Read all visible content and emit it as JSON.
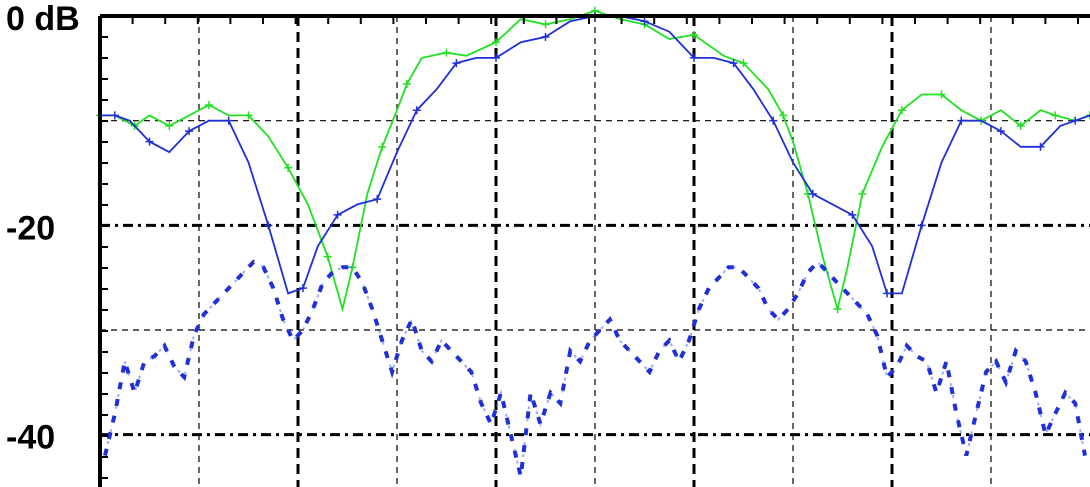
{
  "chart_data": {
    "type": "line",
    "y_tick_labels": [
      "0 dB",
      "-20",
      "-40"
    ],
    "y_ticks": [
      0,
      -20,
      -40
    ],
    "ylim": [
      -45,
      0
    ],
    "xlim": [
      -1,
      1
    ],
    "x_gridlines": [
      -0.8,
      -0.6,
      -0.4,
      -0.2,
      0,
      0.2,
      0.4,
      0.6,
      0.8
    ],
    "y_gridlines": [
      -10,
      -20,
      -30,
      -40
    ],
    "grid": true,
    "colors": {
      "green": "#22e022",
      "blue": "#2030d8",
      "lightblue": "#4a6cf0",
      "grid": "#000000"
    },
    "series": [
      {
        "color": "green",
        "style": "solid",
        "x": [
          -1.0,
          -0.97,
          -0.93,
          -0.9,
          -0.86,
          -0.82,
          -0.78,
          -0.74,
          -0.7,
          -0.66,
          -0.62,
          -0.58,
          -0.54,
          -0.51,
          -0.49,
          -0.46,
          -0.43,
          -0.4,
          -0.38,
          -0.35,
          -0.3,
          -0.26,
          -0.2,
          -0.15,
          -0.1,
          -0.05,
          0.0,
          0.05,
          0.1,
          0.15,
          0.2,
          0.26,
          0.3,
          0.35,
          0.38,
          0.4,
          0.43,
          0.46,
          0.49,
          0.51,
          0.54,
          0.58,
          0.62,
          0.66,
          0.7,
          0.74,
          0.78,
          0.82,
          0.86,
          0.9,
          0.93,
          0.97,
          1.0
        ],
        "y": [
          -9.5,
          -9.5,
          -10.5,
          -9.5,
          -10.5,
          -9.5,
          -8.5,
          -9.5,
          -9.5,
          -11.5,
          -14.5,
          -18.0,
          -23.0,
          -28.0,
          -24.0,
          -17.0,
          -12.5,
          -9.0,
          -6.5,
          -4.0,
          -3.5,
          -3.8,
          -2.5,
          -0.3,
          -0.8,
          -0.3,
          0.5,
          -0.3,
          -0.8,
          -2.2,
          -1.8,
          -3.8,
          -4.5,
          -7.0,
          -9.5,
          -12.0,
          -17.0,
          -23.0,
          -28.0,
          -24.0,
          -17.0,
          -12.5,
          -9.0,
          -7.5,
          -7.5,
          -9.0,
          -10.0,
          -9.0,
          -10.5,
          -9.0,
          -9.5,
          -10.0,
          -9.5
        ]
      },
      {
        "color": "blue",
        "style": "solid",
        "x": [
          -1.0,
          -0.97,
          -0.94,
          -0.9,
          -0.86,
          -0.82,
          -0.78,
          -0.74,
          -0.7,
          -0.66,
          -0.62,
          -0.59,
          -0.56,
          -0.52,
          -0.48,
          -0.44,
          -0.4,
          -0.36,
          -0.32,
          -0.28,
          -0.24,
          -0.2,
          -0.15,
          -0.1,
          -0.05,
          0.0,
          0.05,
          0.1,
          0.15,
          0.2,
          0.24,
          0.28,
          0.32,
          0.36,
          0.4,
          0.44,
          0.48,
          0.52,
          0.56,
          0.59,
          0.62,
          0.66,
          0.7,
          0.74,
          0.78,
          0.82,
          0.86,
          0.9,
          0.94,
          0.97,
          1.0
        ],
        "y": [
          -9.5,
          -9.5,
          -10.0,
          -12.0,
          -13.0,
          -11.0,
          -10.0,
          -10.0,
          -14.0,
          -20.0,
          -26.5,
          -26.0,
          -22.0,
          -19.0,
          -18.0,
          -17.5,
          -13.0,
          -9.0,
          -7.0,
          -4.5,
          -4.0,
          -4.0,
          -2.5,
          -2.0,
          -0.5,
          0.0,
          0.0,
          -0.5,
          -1.5,
          -4.0,
          -4.0,
          -4.5,
          -7.0,
          -10.0,
          -14.0,
          -17.0,
          -18.0,
          -19.0,
          -22.0,
          -26.5,
          -26.5,
          -20.0,
          -14.0,
          -10.0,
          -10.0,
          -11.0,
          -12.5,
          -12.5,
          -10.5,
          -10.0,
          -9.5
        ]
      },
      {
        "color": "blue",
        "style": "dashed",
        "x": [
          -0.99,
          -0.97,
          -0.95,
          -0.93,
          -0.91,
          -0.89,
          -0.87,
          -0.85,
          -0.83,
          -0.81,
          -0.79,
          -0.77,
          -0.75,
          -0.73,
          -0.71,
          -0.69,
          -0.67,
          -0.65,
          -0.63,
          -0.61,
          -0.59,
          -0.57,
          -0.55,
          -0.53,
          -0.51,
          -0.49,
          -0.47,
          -0.45,
          -0.43,
          -0.41,
          -0.39,
          -0.37,
          -0.35,
          -0.33,
          -0.31,
          -0.29,
          -0.27,
          -0.25,
          -0.23,
          -0.21,
          -0.19,
          -0.17,
          -0.15,
          -0.13,
          -0.11,
          -0.09,
          -0.07,
          -0.05,
          -0.03,
          -0.01,
          0.01,
          0.03,
          0.05,
          0.07,
          0.09,
          0.11,
          0.13,
          0.15,
          0.17,
          0.19,
          0.21,
          0.23,
          0.25,
          0.27,
          0.29,
          0.31,
          0.33,
          0.35,
          0.37,
          0.39,
          0.41,
          0.43,
          0.45,
          0.47,
          0.49,
          0.51,
          0.53,
          0.55,
          0.57,
          0.59,
          0.61,
          0.63,
          0.65,
          0.67,
          0.69,
          0.71,
          0.73,
          0.75,
          0.77,
          0.79,
          0.81,
          0.83,
          0.85,
          0.87,
          0.89,
          0.91,
          0.93,
          0.95,
          0.97,
          0.99
        ],
        "y": [
          -42.0,
          -38.0,
          -33.0,
          -36.0,
          -33.0,
          -32.5,
          -31.5,
          -33.5,
          -34.5,
          -30.5,
          -28.5,
          -27.5,
          -26.5,
          -25.5,
          -24.5,
          -23.5,
          -24.0,
          -26.0,
          -29.0,
          -31.0,
          -30.0,
          -28.0,
          -25.5,
          -24.5,
          -24.0,
          -24.0,
          -25.5,
          -28.0,
          -31.0,
          -34.0,
          -31.0,
          -29.0,
          -32.0,
          -33.0,
          -31.0,
          -32.0,
          -33.0,
          -34.0,
          -37.0,
          -39.0,
          -36.0,
          -40.0,
          -44.0,
          -36.0,
          -39.0,
          -36.0,
          -37.0,
          -32.0,
          -33.0,
          -31.0,
          -30.0,
          -29.0,
          -31.0,
          -32.0,
          -33.0,
          -34.0,
          -32.0,
          -31.0,
          -33.0,
          -31.0,
          -28.0,
          -26.0,
          -25.0,
          -24.0,
          -24.0,
          -25.0,
          -26.0,
          -28.0,
          -29.0,
          -28.0,
          -26.5,
          -24.5,
          -23.5,
          -24.5,
          -25.5,
          -26.5,
          -27.5,
          -28.5,
          -30.5,
          -34.5,
          -33.5,
          -31.5,
          -32.5,
          -33.0,
          -36.0,
          -33.0,
          -38.0,
          -42.0,
          -38.0,
          -34.0,
          -33.0,
          -35.0,
          -32.0,
          -33.0,
          -36.0,
          -40.0,
          -38.0,
          -36.0,
          -37.0,
          -42.0
        ]
      }
    ]
  }
}
